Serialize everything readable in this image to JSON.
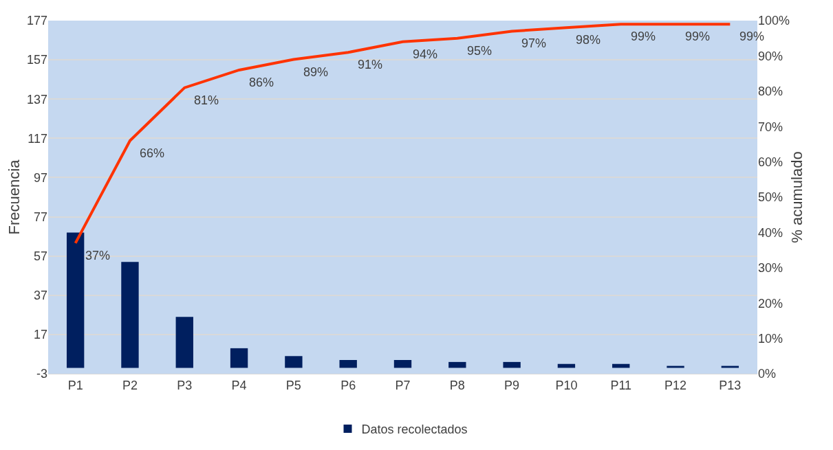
{
  "chart_data": {
    "type": "bar",
    "categories": [
      "P1",
      "P2",
      "P3",
      "P4",
      "P5",
      "P6",
      "P7",
      "P8",
      "P9",
      "P10",
      "P11",
      "P12",
      "P13"
    ],
    "series": [
      {
        "name": "Datos recolectados",
        "color": "#001f5f",
        "values": [
          69,
          54,
          26,
          10,
          6,
          4,
          4,
          3,
          3,
          2,
          2,
          1,
          1
        ]
      },
      {
        "type": "line",
        "axis": "y2",
        "color": "#ff3300",
        "values": [
          37,
          66,
          81,
          86,
          89,
          91,
          94,
          95,
          97,
          98,
          99,
          99,
          99
        ],
        "value_labels": [
          "37%",
          "66%",
          "81%",
          "86%",
          "89%",
          "91%",
          "94%",
          "95%",
          "97%",
          "98%",
          "99%",
          "99%",
          "99%"
        ],
        "marker": "none",
        "line_style": "solid"
      }
    ],
    "ylabel": "Frecuencia",
    "y2label": "% acumulado",
    "ylim": [
      -3,
      177
    ],
    "yticks": [
      -3,
      17,
      37,
      57,
      77,
      97,
      117,
      137,
      157,
      177
    ],
    "y2lim": [
      0,
      100
    ],
    "y2ticks": [
      {
        "value": 0,
        "label": "0%"
      },
      {
        "value": 10,
        "label": "10%"
      },
      {
        "value": 20,
        "label": "20%"
      },
      {
        "value": 30,
        "label": "30%"
      },
      {
        "value": 40,
        "label": "40%"
      },
      {
        "value": 50,
        "label": "50%"
      },
      {
        "value": 60,
        "label": "60%"
      },
      {
        "value": 70,
        "label": "70%"
      },
      {
        "value": 80,
        "label": "80%"
      },
      {
        "value": 90,
        "label": "90%"
      },
      {
        "value": 100,
        "label": "100%"
      }
    ],
    "grid": "y",
    "legend": "bottom"
  }
}
